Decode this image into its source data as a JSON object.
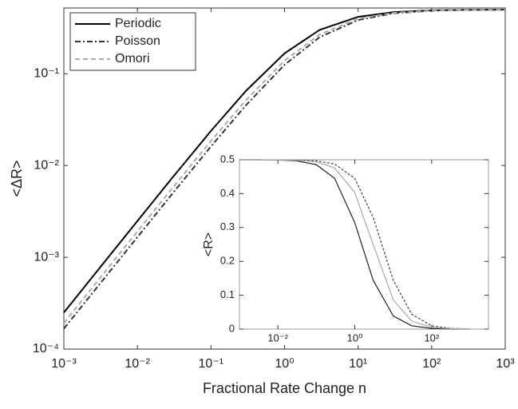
{
  "chart_data": [
    {
      "type": "line",
      "xlabel": "Fractional Rate Change n",
      "ylabel": "<ΔR>",
      "xscale": "log",
      "yscale": "log",
      "legend": "upper left",
      "xlim": [
        0.001,
        1000
      ],
      "ylim": [
        0.0001,
        0.52
      ],
      "xticks": [
        {
          "value": 0.001,
          "label": "10⁻³"
        },
        {
          "value": 0.01,
          "label": "10⁻²"
        },
        {
          "value": 0.1,
          "label": "10⁻¹"
        },
        {
          "value": 1,
          "label": "10⁰"
        },
        {
          "value": 10,
          "label": "10¹"
        },
        {
          "value": 100,
          "label": "10²"
        },
        {
          "value": 1000,
          "label": "10³"
        }
      ],
      "yticks": [
        {
          "value": 0.0001,
          "label": "10⁻⁴"
        },
        {
          "value": 0.001,
          "label": "10⁻³"
        },
        {
          "value": 0.01,
          "label": "10⁻²"
        },
        {
          "value": 0.1,
          "label": "10⁻¹"
        }
      ],
      "x": [
        0.001,
        0.003,
        0.01,
        0.03,
        0.1,
        0.3,
        1,
        3,
        10,
        30,
        100,
        300,
        1000
      ],
      "series": [
        {
          "name": "Periodic",
          "color": "#000000",
          "dash": "none",
          "values": [
            0.0002499,
            0.0007489,
            0.002488,
            0.007389,
            0.02381,
            0.06522,
            0.1667,
            0.3,
            0.4167,
            0.4688,
            0.4902,
            0.4967,
            0.499
          ]
        },
        {
          "name": "Poisson",
          "color": "#333333",
          "dash": "7 3 2 3",
          "values": [
            0.0001666,
            0.0004995,
            0.001661,
            0.00495,
            0.01613,
            0.04545,
            0.125,
            0.25,
            0.3846,
            0.4545,
            0.4854,
            0.495,
            0.4985
          ]
        },
        {
          "name": "Omori",
          "color": "#aaaaaa",
          "dash": "6 4",
          "values": [
            0.0001922,
            0.0005763,
            0.001916,
            0.005703,
            0.01852,
            0.05172,
            0.1389,
            0.2679,
            0.3968,
            0.4601,
            0.4873,
            0.4957,
            0.4987
          ]
        }
      ]
    },
    {
      "type": "line",
      "ylabel": "<R>",
      "xscale": "log",
      "yscale": "linear",
      "xlim": [
        0.001,
        3000
      ],
      "ylim": [
        0,
        0.5
      ],
      "xticks": [
        {
          "value": 0.01,
          "label": "10⁻²"
        },
        {
          "value": 1,
          "label": "10⁰"
        },
        {
          "value": 100,
          "label": "10²"
        }
      ],
      "yticks": [
        0,
        0.1,
        0.2,
        0.3,
        0.4,
        0.5
      ],
      "x": [
        0.001,
        0.003,
        0.01,
        0.03,
        0.1,
        0.3,
        1,
        3,
        10,
        30,
        100,
        300,
        1000
      ],
      "series": [
        {
          "color": "#222222",
          "dash": "none",
          "values": [
            0.5,
            0.5,
            0.4993,
            0.4969,
            0.4856,
            0.445,
            0.3145,
            0.1445,
            0.039,
            0.01,
            0.0021,
            0.0005,
            0.0001
          ]
        },
        {
          "color": "#444444",
          "dash": "3 2",
          "values": [
            0.5,
            0.5,
            0.4998,
            0.4994,
            0.4969,
            0.4874,
            0.445,
            0.33,
            0.1445,
            0.0443,
            0.01,
            0.0024,
            0.0005
          ]
        },
        {
          "color": "#aaaaaa",
          "dash": "none",
          "values": [
            0.5,
            0.5,
            0.4997,
            0.4988,
            0.494,
            0.476,
            0.403,
            0.25,
            0.0865,
            0.0239,
            0.0052,
            0.0013,
            0.0003
          ]
        }
      ]
    }
  ]
}
